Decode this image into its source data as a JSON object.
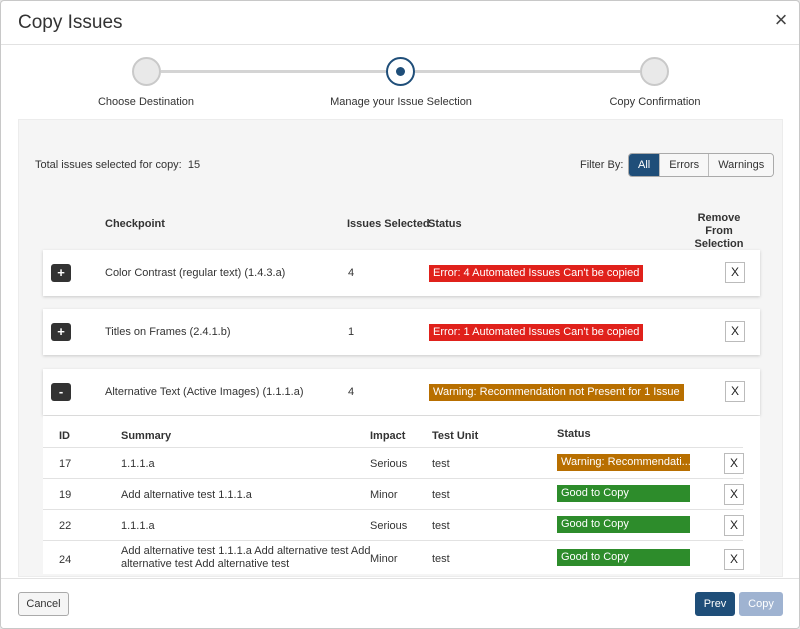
{
  "title": "Copy Issues",
  "close_glyph": "×",
  "steps": [
    {
      "label": "Choose Destination",
      "state": "done"
    },
    {
      "label": "Manage your Issue Selection",
      "state": "active"
    },
    {
      "label": "Copy Confirmation",
      "state": "pending"
    }
  ],
  "summary": {
    "total_label": "Total issues selected for copy:",
    "total_value": "15"
  },
  "filter": {
    "label": "Filter By:",
    "options": [
      "All",
      "Errors",
      "Warnings"
    ],
    "selected": "All"
  },
  "columns": {
    "checkpoint": "Checkpoint",
    "issues_selected": "Issues Selected",
    "status": "Status",
    "remove_line1": "Remove From",
    "remove_line2": "Selection"
  },
  "checkpoints": [
    {
      "toggle": "+",
      "name": "Color Contrast (regular text) (1.4.3.a)",
      "count": "4",
      "status": "Error: 4 Automated Issues Can't be copied",
      "status_type": "error",
      "remove": "X"
    },
    {
      "toggle": "+",
      "name": "Titles on Frames (2.4.1.b)",
      "count": "1",
      "status": "Error: 1 Automated Issues Can't be copied",
      "status_type": "error",
      "remove": "X"
    },
    {
      "toggle": "-",
      "name": "Alternative Text (Active Images) (1.1.1.a)",
      "count": "4",
      "status": "Warning: Recommendation not Present for 1 Issue",
      "status_type": "warning",
      "remove": "X"
    }
  ],
  "sub_columns": {
    "id": "ID",
    "summary": "Summary",
    "impact": "Impact",
    "test_unit": "Test Unit",
    "status": "Status"
  },
  "issues": [
    {
      "id": "17",
      "summary": "1.1.1.a",
      "summary2": "",
      "impact": "Serious",
      "test_unit": "test",
      "status": "Warning: Recommendati...",
      "status_type": "warning",
      "remove": "X"
    },
    {
      "id": "19",
      "summary": "Add alternative test 1.1.1.a",
      "summary2": "",
      "impact": "Minor",
      "test_unit": "test",
      "status": "Good to Copy",
      "status_type": "good",
      "remove": "X"
    },
    {
      "id": "22",
      "summary": "1.1.1.a",
      "summary2": "",
      "impact": "Serious",
      "test_unit": "test",
      "status": "Good to Copy",
      "status_type": "good",
      "remove": "X"
    },
    {
      "id": "24",
      "summary": "Add alternative test 1.1.1.a Add alternative test Add",
      "summary2": "alternative test Add alternative test",
      "impact": "Minor",
      "test_unit": "test",
      "status": "Good to Copy",
      "status_type": "good",
      "remove": "X"
    }
  ],
  "footer": {
    "cancel": "Cancel",
    "prev": "Prev",
    "copy": "Copy"
  },
  "colors": {
    "primary": "#1f4e79",
    "error": "#e0211b",
    "warning": "#b86f00",
    "good": "#2d8c2b"
  }
}
